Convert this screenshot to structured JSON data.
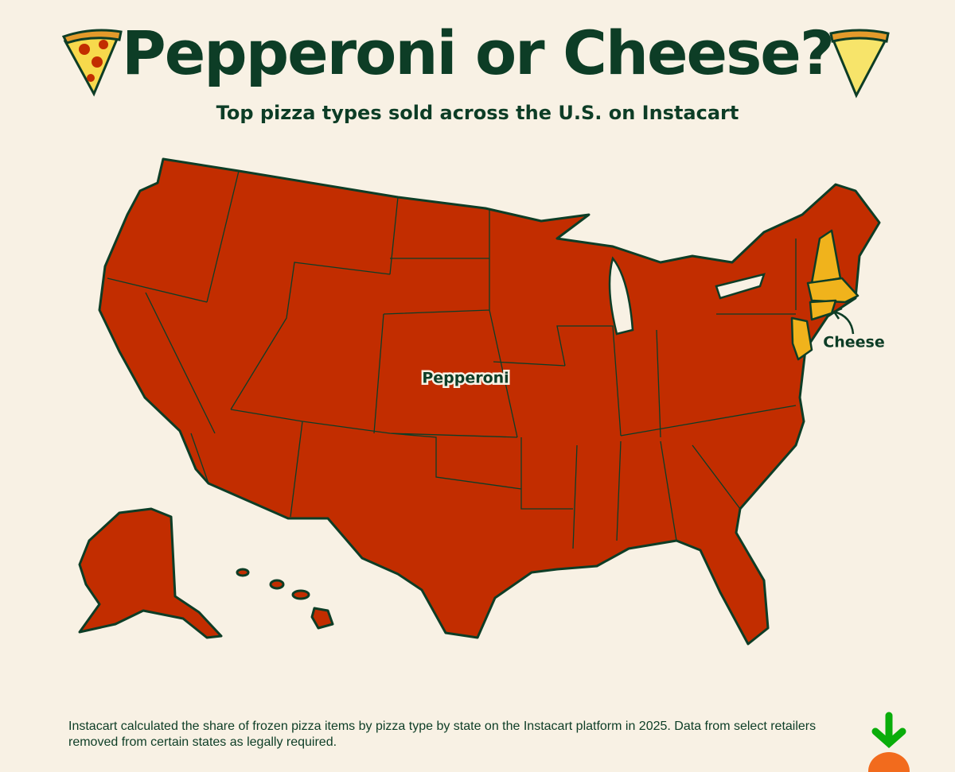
{
  "header": {
    "title": "Pepperoni or Cheese?",
    "subtitle": "Top pizza types sold across the U.S. on Instacart"
  },
  "map": {
    "labels": [
      "Pepperoni",
      "Cheese"
    ]
  },
  "footer": {
    "note": "Instacart calculated the share of frozen pizza items by pizza type by state on the Instacart platform in 2025. Data from select retailers removed from certain states as legally required."
  }
}
